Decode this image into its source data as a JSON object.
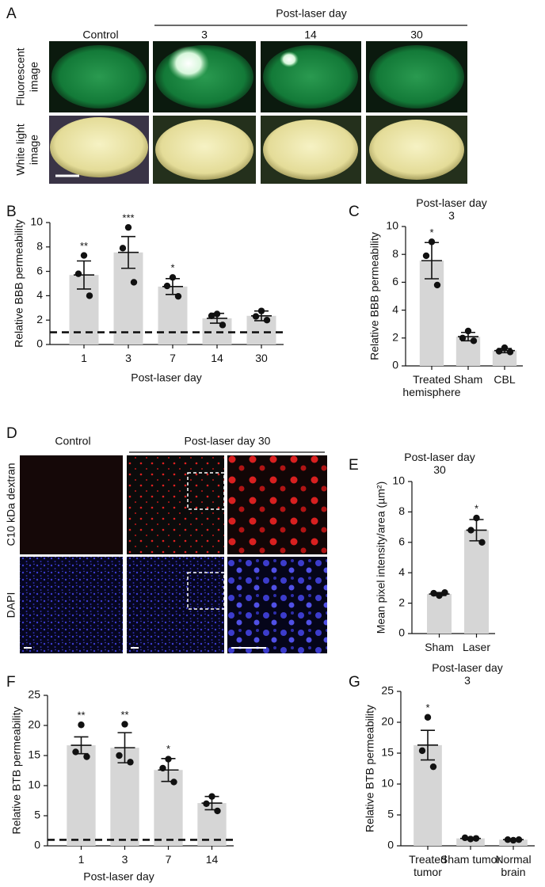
{
  "panel_labels": [
    "A",
    "B",
    "C",
    "D",
    "E",
    "F",
    "G"
  ],
  "panel_a": {
    "header": "Post-laser day",
    "columns": [
      "Control",
      "3",
      "14",
      "30"
    ],
    "rows": [
      [
        "Fluorescent",
        "image"
      ],
      [
        "White light",
        "image"
      ]
    ]
  },
  "panel_d": {
    "columns": [
      "Control",
      "Post-laser day 30"
    ],
    "rows": [
      "C10 kDa dextran",
      "DAPI"
    ]
  },
  "chart_data": [
    {
      "type": "bar",
      "categories": [
        "1",
        "3",
        "7",
        "14",
        "30"
      ],
      "values": [
        5.7,
        7.55,
        4.75,
        2.15,
        2.35
      ],
      "errors": [
        1.15,
        1.3,
        0.65,
        0.4,
        0.4
      ],
      "points": [
        [
          7.3,
          5.8,
          4.0
        ],
        [
          9.6,
          7.9,
          5.1
        ],
        [
          5.5,
          4.8,
          3.95
        ],
        [
          2.5,
          2.35,
          1.6
        ],
        [
          2.75,
          2.3,
          2.0
        ]
      ],
      "significance": [
        "**",
        "***",
        "*",
        null,
        null
      ],
      "reference_line": 1,
      "xlabel": "Post-laser day",
      "ylabel": "Relative BBB permeability",
      "ylim": [
        0,
        10
      ],
      "yticks": [
        0,
        2,
        4,
        6,
        8,
        10
      ],
      "color": "#d6d6d6"
    },
    {
      "type": "bar",
      "title": "Post-laser day 3",
      "categories": [
        "Treated hemisphere",
        "Sham",
        "CBL"
      ],
      "values": [
        7.55,
        2.1,
        1.1
      ],
      "errors": [
        1.3,
        0.3,
        0.15
      ],
      "points": [
        [
          8.9,
          7.9,
          5.8
        ],
        [
          2.5,
          2.0,
          1.8
        ],
        [
          1.3,
          1.05,
          1.0
        ]
      ],
      "significance": [
        "*",
        null,
        null
      ],
      "ylabel": "Relative BBB permeability",
      "ylim": [
        0,
        10
      ],
      "yticks": [
        0,
        2,
        4,
        6,
        8,
        10
      ],
      "color": "#d6d6d6"
    },
    {
      "type": "bar",
      "title": "Post-laser day 30",
      "categories": [
        "Sham",
        "Laser"
      ],
      "values": [
        2.6,
        6.8
      ],
      "errors": [
        0.1,
        0.7
      ],
      "points": [
        [
          2.5,
          2.65,
          2.7
        ],
        [
          7.6,
          6.8,
          6.0
        ]
      ],
      "significance": [
        null,
        "*"
      ],
      "ylabel": "Mean pixel intensity/area (µm²)",
      "ylim": [
        0,
        10
      ],
      "yticks": [
        0,
        2,
        4,
        6,
        8,
        10
      ],
      "color": "#d6d6d6"
    },
    {
      "type": "bar",
      "categories": [
        "1",
        "3",
        "7",
        "14"
      ],
      "values": [
        16.7,
        16.3,
        12.6,
        7.1
      ],
      "errors": [
        1.4,
        2.5,
        1.9,
        1.1
      ],
      "points": [
        [
          20.1,
          15.6,
          14.8
        ],
        [
          20.2,
          15.0,
          13.9
        ],
        [
          14.4,
          12.9,
          10.6
        ],
        [
          8.2,
          7.0,
          5.8
        ]
      ],
      "significance": [
        "**",
        "**",
        "*",
        null
      ],
      "reference_line": 1,
      "xlabel": "Post-laser day",
      "ylabel": "Relative BTB permeability",
      "ylim": [
        0,
        25
      ],
      "yticks": [
        0,
        5,
        10,
        15,
        20,
        25
      ],
      "color": "#d6d6d6"
    },
    {
      "type": "bar",
      "title": "Post-laser day 3",
      "categories": [
        "Treated tumor",
        "Sham tumor",
        "Normal brain"
      ],
      "values": [
        16.3,
        1.2,
        1.0
      ],
      "errors": [
        2.4,
        0.15,
        0.1
      ],
      "points": [
        [
          20.8,
          15.4,
          12.8
        ],
        [
          1.1,
          1.3,
          1.2
        ],
        [
          0.9,
          1.0,
          1.0
        ]
      ],
      "significance": [
        "*",
        null,
        null
      ],
      "ylabel": "Relative BTB permeability",
      "ylim": [
        0,
        25
      ],
      "yticks": [
        0,
        5,
        10,
        15,
        20,
        25
      ],
      "color": "#d6d6d6"
    }
  ]
}
